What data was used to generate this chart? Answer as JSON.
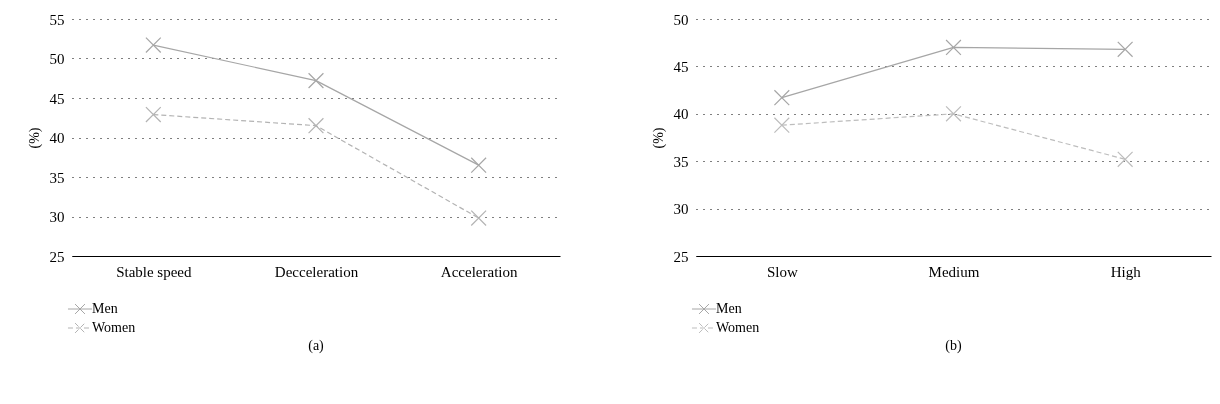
{
  "chart_data": [
    {
      "type": "line",
      "categories": [
        "Stable speed",
        "Decceleration",
        "Acceleration"
      ],
      "ylabel": "(%)",
      "ylim": [
        25,
        55
      ],
      "yticks": [
        25,
        30,
        35,
        40,
        45,
        50,
        55
      ],
      "grid": "y",
      "legend": "bottom left",
      "marker": "cross",
      "annotations": [
        "(a)"
      ],
      "series": [
        {
          "name": "Men",
          "color": "#a6a6a6",
          "line_style": "solid",
          "values": [
            51.7,
            47.2,
            36.5
          ]
        },
        {
          "name": "Women",
          "color": "#b3b3b3",
          "line_style": "dashed",
          "values": [
            42.9,
            41.5,
            29.8
          ]
        }
      ]
    },
    {
      "type": "line",
      "categories": [
        "Slow",
        "Medium",
        "High"
      ],
      "ylabel": "(%)",
      "ylim": [
        25,
        50
      ],
      "yticks": [
        25,
        30,
        35,
        40,
        45,
        50
      ],
      "grid": "y",
      "legend": "bottom left",
      "marker": "cross",
      "annotations": [
        "(b)"
      ],
      "series": [
        {
          "name": "Men",
          "color": "#a6a6a6",
          "line_style": "solid",
          "values": [
            41.7,
            47.0,
            46.8
          ]
        },
        {
          "name": "Women",
          "color": "#bdbdbd",
          "line_style": "dashed",
          "values": [
            38.8,
            40.0,
            35.2
          ]
        }
      ]
    }
  ]
}
